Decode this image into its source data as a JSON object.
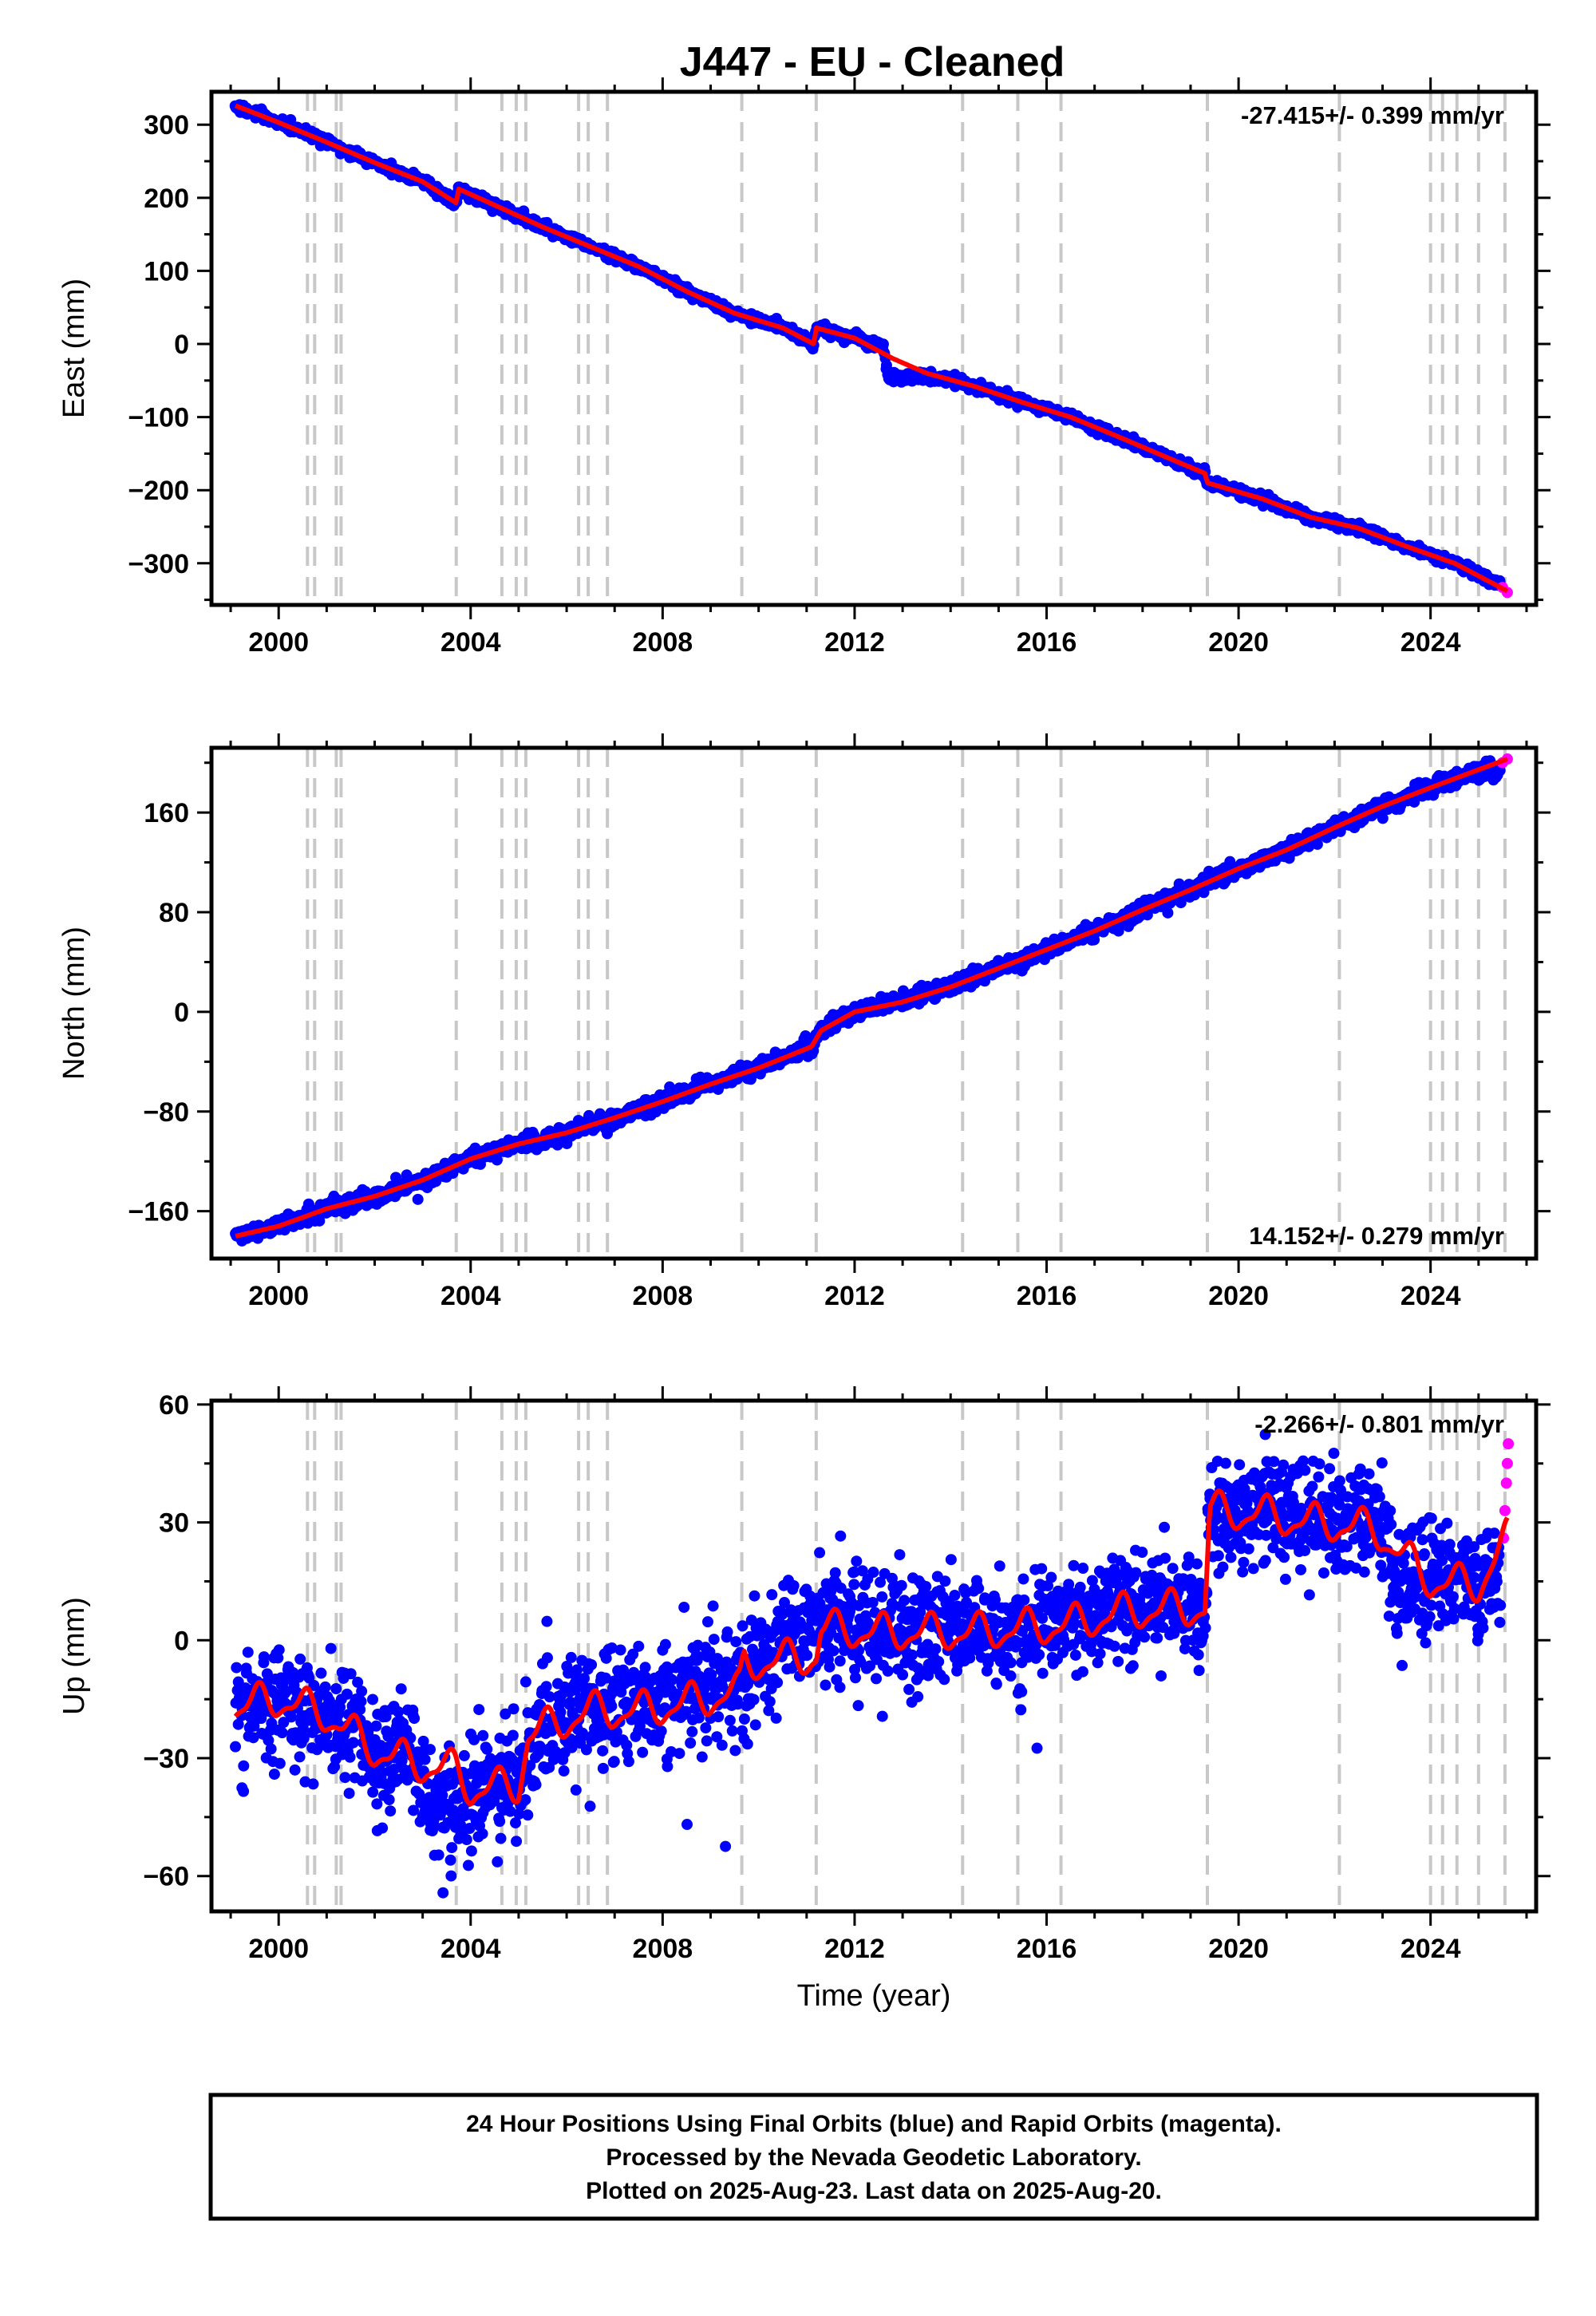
{
  "title": "J447  - EU - Cleaned",
  "footer": {
    "line1": "24 Hour Positions Using Final Orbits (blue) and Rapid Orbits (magenta).",
    "line2": "Processed by the Nevada Geodetic Laboratory.",
    "line3": "Plotted on 2025-Aug-23. Last data on 2025-Aug-20."
  },
  "colors": {
    "final": "#0000ff",
    "rapid": "#ff00ff",
    "model": "#ff0000",
    "steps": "#c8c8c8"
  },
  "chart_data": [
    {
      "type": "scatter",
      "ylabel": "East (mm)",
      "xlabel": "",
      "rate": "-27.415+/- 0.399 mm/yr",
      "rate_position": "top-right",
      "xlim": [
        1998.6,
        2026.2
      ],
      "ylim": [
        -357,
        345
      ],
      "xticks": [
        2000,
        2004,
        2008,
        2012,
        2016,
        2020,
        2024
      ],
      "yticks": [
        300,
        200,
        100,
        0,
        -100,
        -200,
        -300
      ],
      "ytick_labels": [
        "300",
        "200",
        "100",
        "0",
        "−100",
        "−200",
        "−300"
      ],
      "step_times": [
        2000.6,
        2000.75,
        2001.2,
        2001.3,
        2003.7,
        2004.65,
        2004.95,
        2005.15,
        2006.25,
        2006.45,
        2006.85,
        2009.65,
        2011.2,
        2014.25,
        2015.4,
        2016.3,
        2019.35,
        2022.1,
        2024.0,
        2024.25,
        2024.55,
        2025.0,
        2025.55
      ],
      "series": [
        {
          "kind": "final",
          "points": [
            [
              1999.1,
              326
            ],
            [
              2000.0,
              303
            ],
            [
              2001.0,
              276
            ],
            [
              2002.0,
              248
            ],
            [
              2003.0,
              222
            ],
            [
              2003.7,
              193
            ],
            [
              2003.75,
              212
            ],
            [
              2004.5,
              190
            ],
            [
              2005.5,
              160
            ],
            [
              2006.5,
              133
            ],
            [
              2007.5,
              106
            ],
            [
              2008.5,
              72
            ],
            [
              2009.5,
              42
            ],
            [
              2010.5,
              22
            ],
            [
              2011.15,
              0
            ],
            [
              2011.2,
              22
            ],
            [
              2012.0,
              8
            ],
            [
              2012.6,
              -5
            ],
            [
              2012.7,
              -45
            ],
            [
              2013.5,
              -45
            ],
            [
              2014.5,
              -58
            ],
            [
              2015.5,
              -80
            ],
            [
              2016.5,
              -100
            ],
            [
              2017.5,
              -127
            ],
            [
              2018.5,
              -155
            ],
            [
              2019.3,
              -177
            ],
            [
              2019.35,
              -190
            ],
            [
              2020.5,
              -212
            ],
            [
              2021.5,
              -237
            ],
            [
              2022.5,
              -252
            ],
            [
              2023.5,
              -277
            ],
            [
              2024.5,
              -300
            ],
            [
              2025.45,
              -330
            ]
          ]
        },
        {
          "kind": "rapid",
          "points": [
            [
              2025.5,
              -333
            ],
            [
              2025.6,
              -340
            ]
          ]
        },
        {
          "kind": "model",
          "points": [
            [
              1999.1,
              326
            ],
            [
              2000.0,
              303
            ],
            [
              2001.0,
              276
            ],
            [
              2002.0,
              248
            ],
            [
              2003.0,
              222
            ],
            [
              2003.7,
              193
            ],
            [
              2003.75,
              212
            ],
            [
              2004.5,
              190
            ],
            [
              2005.5,
              160
            ],
            [
              2006.5,
              133
            ],
            [
              2007.5,
              106
            ],
            [
              2008.5,
              72
            ],
            [
              2009.5,
              42
            ],
            [
              2010.5,
              22
            ],
            [
              2011.15,
              0
            ],
            [
              2011.2,
              22
            ],
            [
              2012.0,
              8
            ],
            [
              2012.8,
              -20
            ],
            [
              2013.5,
              -40
            ],
            [
              2014.5,
              -58
            ],
            [
              2015.5,
              -80
            ],
            [
              2016.5,
              -100
            ],
            [
              2017.5,
              -127
            ],
            [
              2018.5,
              -155
            ],
            [
              2019.3,
              -177
            ],
            [
              2019.35,
              -190
            ],
            [
              2020.5,
              -212
            ],
            [
              2021.5,
              -237
            ],
            [
              2022.5,
              -252
            ],
            [
              2023.5,
              -277
            ],
            [
              2024.5,
              -300
            ],
            [
              2025.6,
              -338
            ]
          ]
        }
      ]
    },
    {
      "type": "scatter",
      "ylabel": "North (mm)",
      "xlabel": "",
      "rate": "14.152+/- 0.279 mm/yr",
      "rate_position": "bottom-right",
      "xlim": [
        1998.6,
        2026.2
      ],
      "ylim": [
        -198,
        212
      ],
      "xticks": [
        2000,
        2004,
        2008,
        2012,
        2016,
        2020,
        2024
      ],
      "yticks": [
        160,
        80,
        0,
        -80,
        -160
      ],
      "ytick_labels": [
        "160",
        "80",
        "0",
        "−80",
        "−160"
      ],
      "step_times": [
        2000.6,
        2000.75,
        2001.2,
        2001.3,
        2003.7,
        2004.65,
        2004.95,
        2005.15,
        2006.25,
        2006.45,
        2006.85,
        2009.65,
        2011.2,
        2014.25,
        2015.4,
        2016.3,
        2019.35,
        2022.1,
        2024.0,
        2024.25,
        2024.55,
        2025.0,
        2025.55
      ],
      "series": [
        {
          "kind": "final",
          "points": [
            [
              1999.1,
              -180
            ],
            [
              2000.0,
              -172
            ],
            [
              2001.0,
              -158
            ],
            [
              2002.0,
              -148
            ],
            [
              2003.0,
              -135
            ],
            [
              2004.0,
              -118
            ],
            [
              2005.0,
              -106
            ],
            [
              2006.0,
              -97
            ],
            [
              2007.0,
              -85
            ],
            [
              2008.0,
              -72
            ],
            [
              2009.0,
              -58
            ],
            [
              2010.0,
              -45
            ],
            [
              2011.1,
              -28
            ],
            [
              2011.3,
              -15
            ],
            [
              2012.0,
              0
            ],
            [
              2013.0,
              8
            ],
            [
              2014.0,
              20
            ],
            [
              2015.0,
              35
            ],
            [
              2016.0,
              50
            ],
            [
              2017.0,
              65
            ],
            [
              2018.0,
              82
            ],
            [
              2019.0,
              98
            ],
            [
              2020.0,
              115
            ],
            [
              2021.0,
              130
            ],
            [
              2022.0,
              148
            ],
            [
              2023.0,
              165
            ],
            [
              2024.0,
              180
            ],
            [
              2025.45,
              197
            ]
          ]
        },
        {
          "kind": "rapid",
          "points": [
            [
              2025.5,
              200
            ],
            [
              2025.6,
              203
            ]
          ]
        },
        {
          "kind": "model",
          "points": [
            [
              1999.1,
              -180
            ],
            [
              2000.0,
              -172
            ],
            [
              2001.0,
              -158
            ],
            [
              2002.0,
              -148
            ],
            [
              2003.0,
              -135
            ],
            [
              2004.0,
              -118
            ],
            [
              2005.0,
              -106
            ],
            [
              2006.0,
              -97
            ],
            [
              2007.0,
              -85
            ],
            [
              2008.0,
              -72
            ],
            [
              2009.0,
              -58
            ],
            [
              2010.0,
              -45
            ],
            [
              2011.1,
              -28
            ],
            [
              2011.3,
              -15
            ],
            [
              2012.0,
              0
            ],
            [
              2013.0,
              8
            ],
            [
              2014.0,
              20
            ],
            [
              2015.0,
              35
            ],
            [
              2016.0,
              50
            ],
            [
              2017.0,
              65
            ],
            [
              2018.0,
              82
            ],
            [
              2019.0,
              98
            ],
            [
              2020.0,
              115
            ],
            [
              2021.0,
              130
            ],
            [
              2022.0,
              148
            ],
            [
              2023.0,
              165
            ],
            [
              2024.0,
              180
            ],
            [
              2025.6,
              203
            ]
          ]
        }
      ]
    },
    {
      "type": "scatter",
      "ylabel": "Up (mm)",
      "xlabel": "Time (year)",
      "rate": "-2.266+/- 0.801 mm/yr",
      "rate_position": "top-right",
      "xlim": [
        1998.6,
        2026.2
      ],
      "ylim": [
        -69,
        61
      ],
      "xticks": [
        2000,
        2004,
        2008,
        2012,
        2016,
        2020,
        2024
      ],
      "yticks": [
        60,
        30,
        0,
        -30,
        -60
      ],
      "ytick_labels": [
        "60",
        "30",
        "0",
        "−30",
        "−60"
      ],
      "step_times": [
        2000.6,
        2000.75,
        2001.2,
        2001.3,
        2003.7,
        2004.65,
        2004.95,
        2005.15,
        2006.25,
        2006.45,
        2006.85,
        2009.65,
        2011.2,
        2014.25,
        2015.4,
        2016.3,
        2019.35,
        2022.1,
        2024.0,
        2024.25,
        2024.55,
        2025.0,
        2025.55
      ],
      "series": [
        {
          "kind": "final",
          "points": [
            [
              1999.1,
              -18
            ],
            [
              2000.0,
              -16
            ],
            [
              2001.0,
              -18
            ],
            [
              2002.0,
              -26
            ],
            [
              2002.8,
              -30
            ],
            [
              2003.2,
              -45
            ],
            [
              2004.0,
              -38
            ],
            [
              2005.0,
              -36
            ],
            [
              2005.5,
              -22
            ],
            [
              2006.5,
              -16
            ],
            [
              2007.5,
              -16
            ],
            [
              2008.5,
              -14
            ],
            [
              2009.6,
              -12
            ],
            [
              2010.0,
              -5
            ],
            [
              2010.5,
              2
            ],
            [
              2011.5,
              5
            ],
            [
              2012.5,
              3
            ],
            [
              2013.5,
              2
            ],
            [
              2014.5,
              3
            ],
            [
              2015.5,
              4
            ],
            [
              2016.5,
              5
            ],
            [
              2017.5,
              8
            ],
            [
              2018.5,
              9
            ],
            [
              2019.3,
              8
            ],
            [
              2019.4,
              33
            ],
            [
              2020.5,
              32
            ],
            [
              2021.5,
              30
            ],
            [
              2022.5,
              30
            ],
            [
              2023.0,
              28
            ],
            [
              2023.2,
              15
            ],
            [
              2024.0,
              15
            ],
            [
              2025.0,
              14
            ],
            [
              2025.45,
              18
            ]
          ]
        },
        {
          "kind": "rapid",
          "points": [
            [
              2025.52,
              26
            ],
            [
              2025.55,
              33
            ],
            [
              2025.58,
              40
            ],
            [
              2025.6,
              45
            ],
            [
              2025.62,
              50
            ]
          ]
        },
        {
          "kind": "model",
          "points": [
            [
              1999.1,
              -17
            ],
            [
              2000.0,
              -15
            ],
            [
              2001.0,
              -19
            ],
            [
              2002.0,
              -28
            ],
            [
              2003.0,
              -32
            ],
            [
              2003.7,
              -33
            ],
            [
              2004.0,
              -38
            ],
            [
              2005.0,
              -37
            ],
            [
              2005.2,
              -24
            ],
            [
              2006.5,
              -18
            ],
            [
              2007.5,
              -18
            ],
            [
              2008.5,
              -16
            ],
            [
              2009.6,
              -13
            ],
            [
              2009.7,
              -6
            ],
            [
              2011.2,
              -4
            ],
            [
              2011.3,
              3
            ],
            [
              2012.5,
              2
            ],
            [
              2013.5,
              2
            ],
            [
              2014.5,
              2
            ],
            [
              2015.5,
              3
            ],
            [
              2016.5,
              4
            ],
            [
              2017.5,
              7
            ],
            [
              2018.5,
              8
            ],
            [
              2019.3,
              8
            ],
            [
              2019.4,
              33
            ],
            [
              2020.5,
              32
            ],
            [
              2021.5,
              30
            ],
            [
              2022.5,
              29
            ],
            [
              2023.0,
              27
            ],
            [
              2023.2,
              24
            ],
            [
              2024.0,
              15
            ],
            [
              2025.0,
              14
            ],
            [
              2025.6,
              26
            ]
          ]
        }
      ]
    }
  ]
}
